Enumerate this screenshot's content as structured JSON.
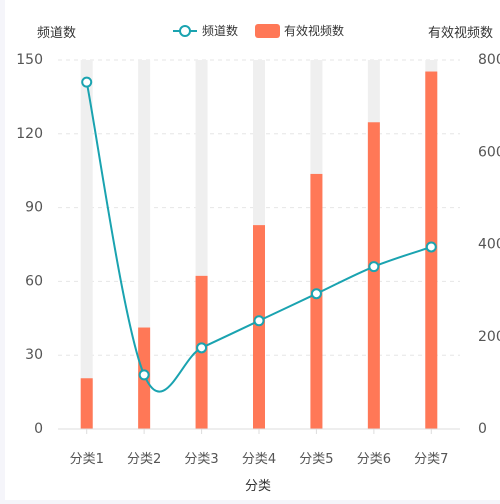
{
  "chart_data": {
    "type": "bar+line",
    "categories": [
      "分类1",
      "分类2",
      "分类3",
      "分类4",
      "分类5",
      "分类6",
      "分类7"
    ],
    "xlabel": "分类",
    "y_left": {
      "label": "频道数",
      "range": [
        0,
        150
      ],
      "ticks": [
        0,
        30,
        60,
        90,
        120,
        150
      ]
    },
    "y_right": {
      "label": "有效视频数",
      "range": [
        0,
        800
      ],
      "ticks": [
        0,
        200,
        400,
        600,
        800
      ]
    },
    "series": [
      {
        "name": "频道数",
        "type": "line",
        "axis": "left",
        "smooth": true,
        "color": "#1aa3b0",
        "values": [
          141,
          22,
          33,
          44,
          55,
          66,
          74
        ]
      },
      {
        "name": "有效视频数",
        "type": "bar",
        "axis": "right",
        "color": "#ff7857",
        "background_color": "#efefef",
        "values": [
          110,
          220,
          332,
          442,
          553,
          665,
          775
        ]
      }
    ],
    "legend_position": "top",
    "grid": "dashed-horizontal"
  }
}
